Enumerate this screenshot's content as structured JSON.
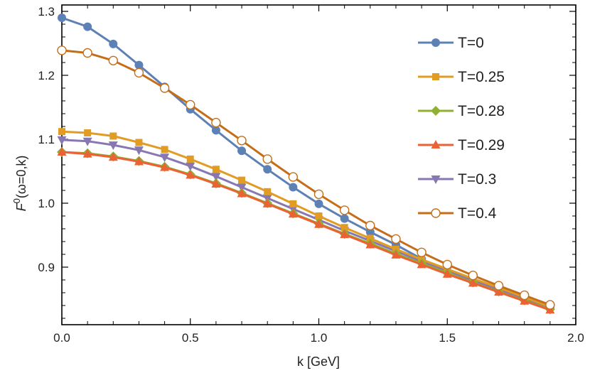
{
  "chart_data": {
    "type": "line",
    "xlabel": "k [GeV]",
    "ylabel_main": "F",
    "ylabel_sup": "0",
    "ylabel_rest": "(ω=0,k)",
    "xlim": [
      0.0,
      2.0
    ],
    "ylim": [
      0.81,
      1.31
    ],
    "xticks": [
      0.0,
      0.5,
      1.0,
      1.5,
      2.0
    ],
    "xtick_labels": [
      "0.0",
      "0.5",
      "1.0",
      "1.5",
      "2.0"
    ],
    "yticks": [
      0.9,
      1.0,
      1.1,
      1.2,
      1.3
    ],
    "ytick_labels": [
      "0.9",
      "1.0",
      "1.1",
      "1.2",
      "1.3"
    ],
    "grid": false,
    "legend_position": "right",
    "x": [
      0.0,
      0.1,
      0.2,
      0.3,
      0.4,
      0.5,
      0.6,
      0.7,
      0.8,
      0.9,
      1.0,
      1.1,
      1.2,
      1.3,
      1.4,
      1.5,
      1.6,
      1.7,
      1.8,
      1.9
    ],
    "series": [
      {
        "name": "T=0",
        "color": "#5e81b5",
        "marker": "circle",
        "values": [
          1.29,
          1.276,
          1.249,
          1.216,
          1.182,
          1.147,
          1.114,
          1.082,
          1.053,
          1.025,
          0.999,
          0.976,
          0.955,
          0.935,
          0.913,
          0.893,
          0.877,
          0.864,
          0.85,
          0.836
        ]
      },
      {
        "name": "T=0.25",
        "color": "#e19c24",
        "marker": "square",
        "values": [
          1.112,
          1.11,
          1.105,
          1.095,
          1.084,
          1.069,
          1.053,
          1.036,
          1.018,
          0.999,
          0.98,
          0.962,
          0.945,
          0.928,
          0.912,
          0.897,
          0.882,
          0.868,
          0.853,
          0.838
        ]
      },
      {
        "name": "T=0.28",
        "color": "#8fb032",
        "marker": "diamond",
        "values": [
          1.08,
          1.078,
          1.073,
          1.066,
          1.057,
          1.045,
          1.031,
          1.016,
          1.0,
          0.984,
          0.968,
          0.952,
          0.937,
          0.921,
          0.906,
          0.891,
          0.876,
          0.862,
          0.848,
          0.834
        ]
      },
      {
        "name": "T=0.29",
        "color": "#eb6235",
        "marker": "triangle-up",
        "values": [
          1.08,
          1.077,
          1.072,
          1.065,
          1.056,
          1.044,
          1.03,
          1.015,
          0.999,
          0.983,
          0.967,
          0.951,
          0.935,
          0.919,
          0.904,
          0.889,
          0.875,
          0.861,
          0.847,
          0.833
        ]
      },
      {
        "name": "T=0.3",
        "color": "#8778b3",
        "marker": "triangle-down",
        "values": [
          1.099,
          1.097,
          1.091,
          1.083,
          1.072,
          1.058,
          1.042,
          1.025,
          1.008,
          0.991,
          0.974,
          0.957,
          0.941,
          0.925,
          0.909,
          0.894,
          0.879,
          0.865,
          0.851,
          0.836
        ]
      },
      {
        "name": "T=0.4",
        "color": "#c56e1a",
        "marker": "open-circle",
        "values": [
          1.239,
          1.235,
          1.223,
          1.204,
          1.18,
          1.154,
          1.126,
          1.098,
          1.069,
          1.041,
          1.014,
          0.989,
          0.965,
          0.944,
          0.923,
          0.904,
          0.887,
          0.871,
          0.856,
          0.841
        ]
      }
    ]
  }
}
